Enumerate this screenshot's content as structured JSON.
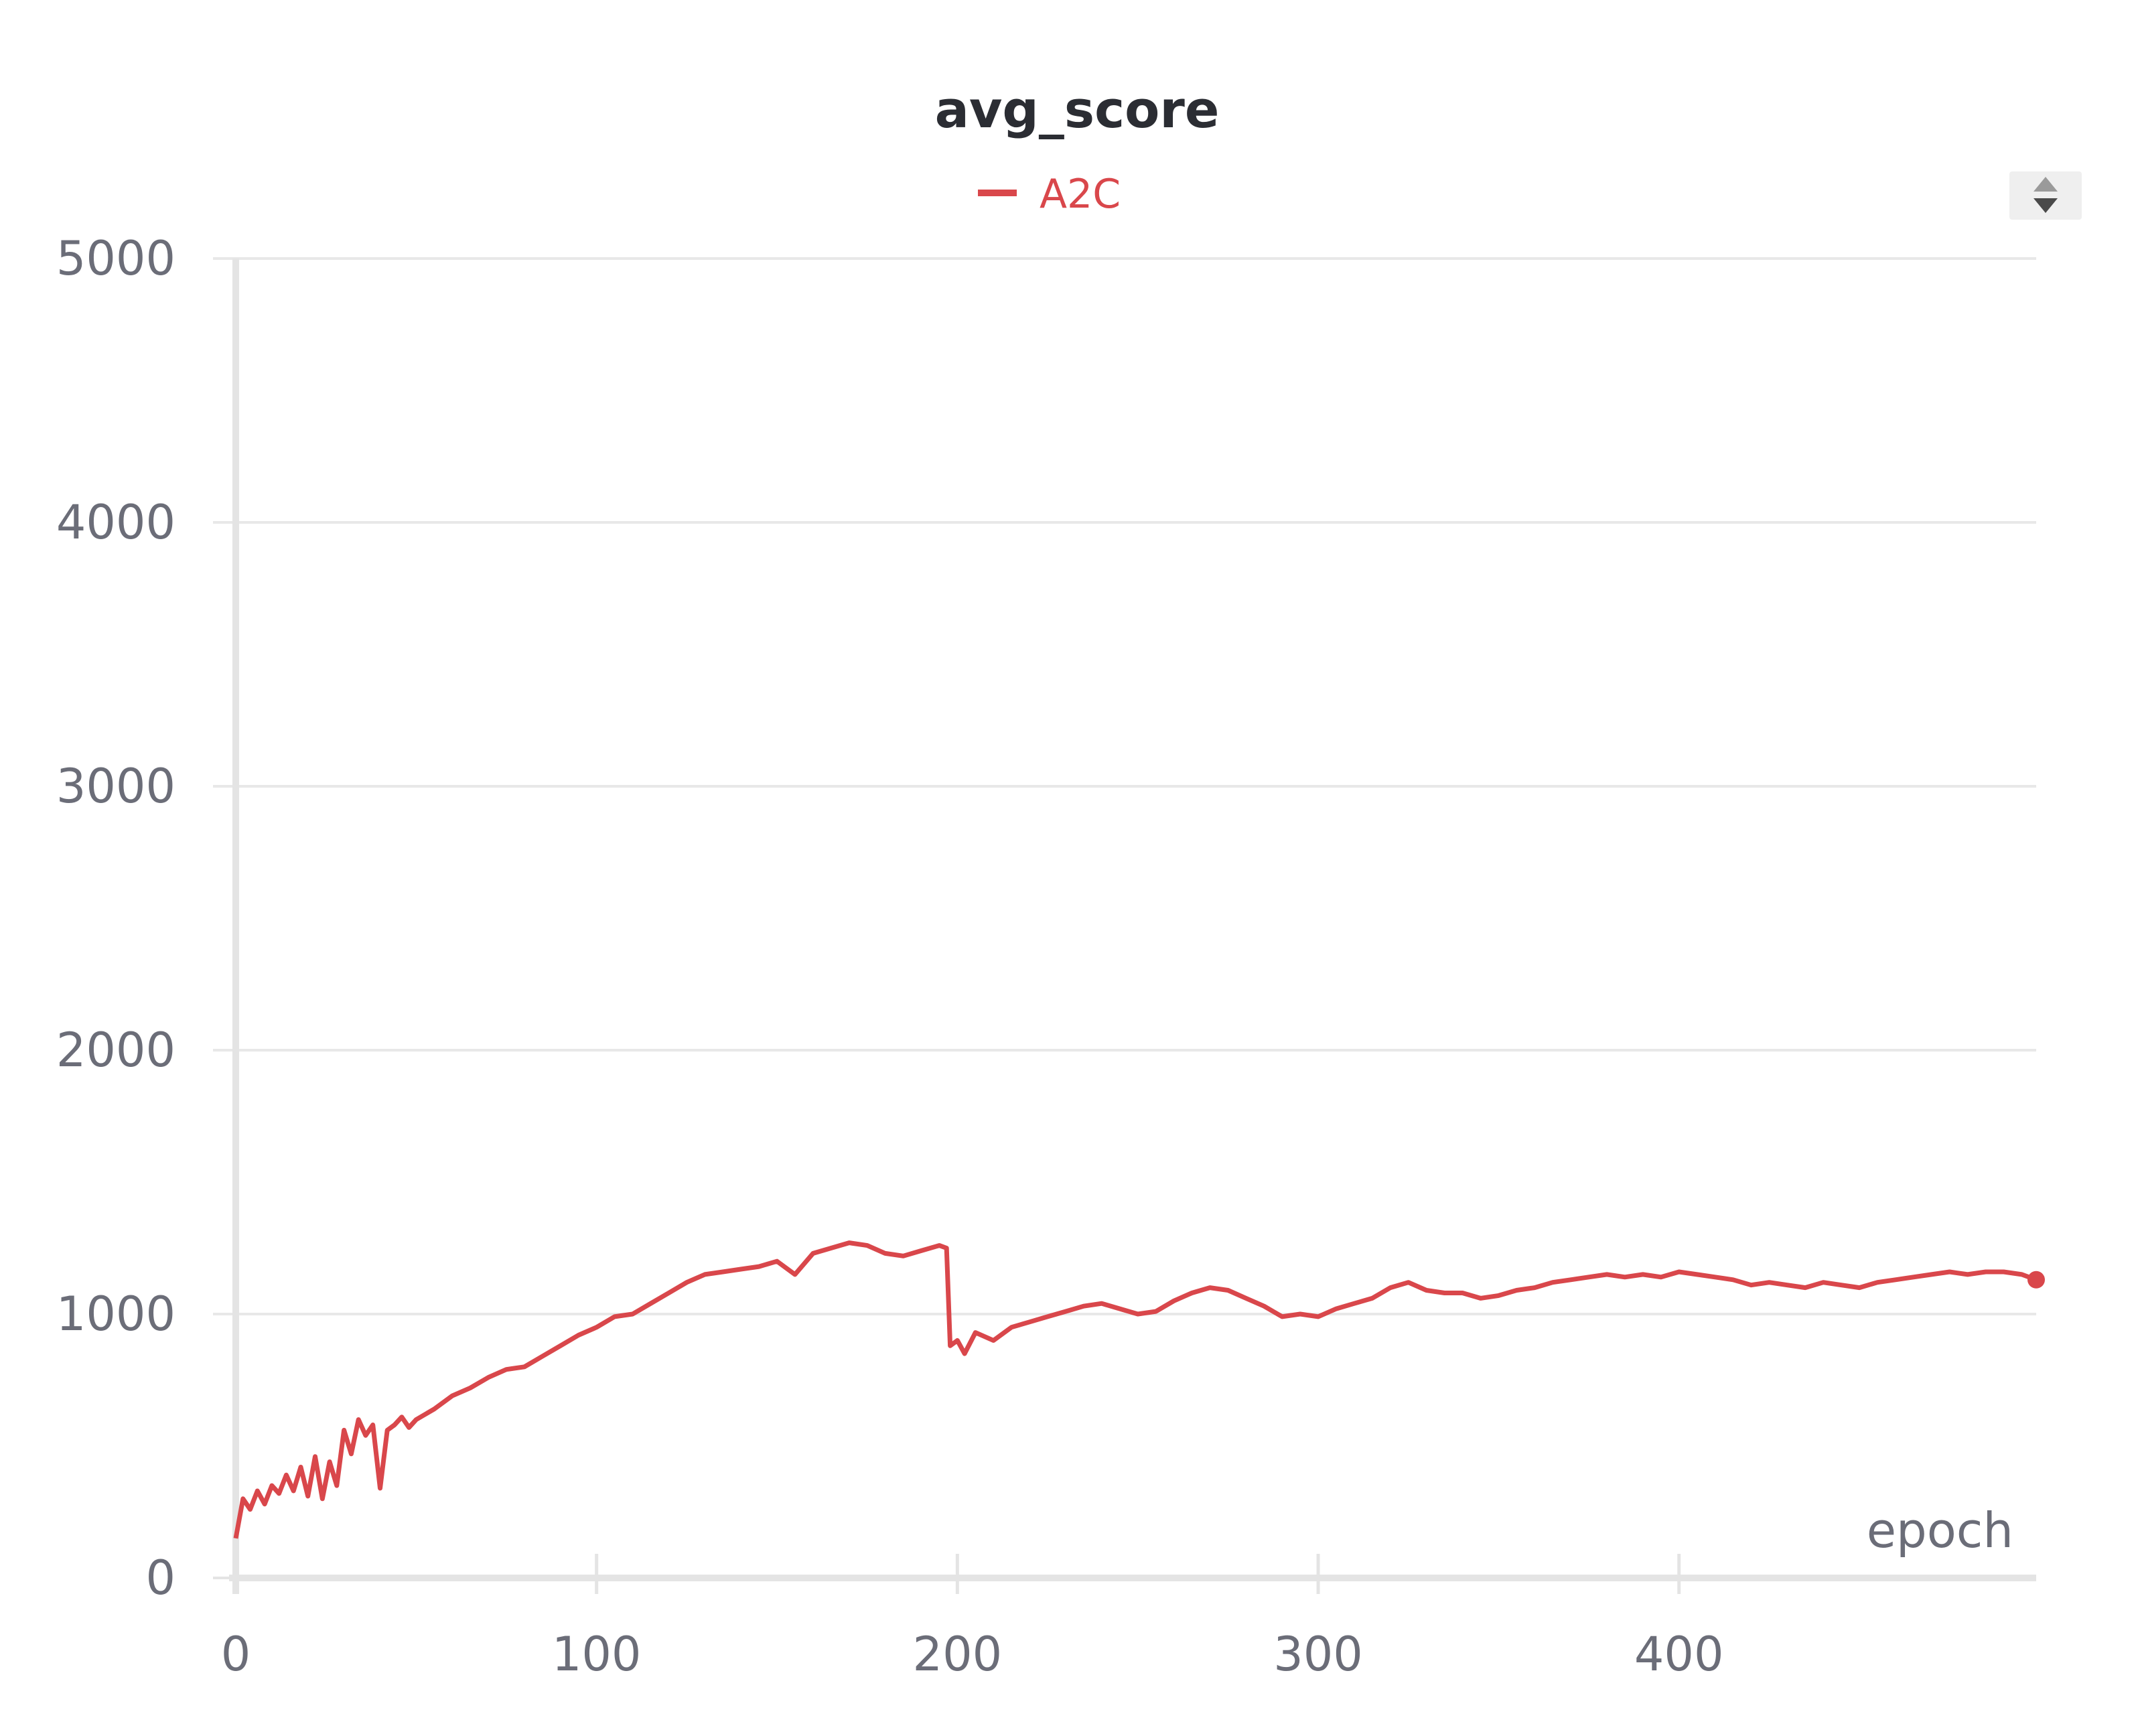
{
  "chart_data": {
    "type": "line",
    "title": "avg_score",
    "xlabel": "epoch",
    "ylabel": "",
    "xlim": [
      0,
      499
    ],
    "ylim": [
      0,
      5000
    ],
    "xticks": [
      0,
      100,
      200,
      300,
      400
    ],
    "yticks": [
      0,
      1000,
      2000,
      3000,
      4000,
      5000
    ],
    "grid": "horizontal",
    "legend_position": "top",
    "series": [
      {
        "name": "A2C",
        "color": "#d9474b",
        "x": [
          0,
          2,
          4,
          6,
          8,
          10,
          12,
          14,
          16,
          18,
          20,
          22,
          24,
          26,
          28,
          30,
          32,
          34,
          36,
          38,
          40,
          42,
          44,
          46,
          48,
          50,
          55,
          60,
          65,
          70,
          75,
          80,
          85,
          90,
          95,
          100,
          105,
          110,
          115,
          120,
          125,
          130,
          135,
          140,
          145,
          150,
          155,
          160,
          165,
          170,
          175,
          180,
          185,
          190,
          195,
          197,
          198,
          200,
          202,
          205,
          210,
          215,
          220,
          225,
          230,
          235,
          240,
          245,
          250,
          255,
          260,
          265,
          270,
          275,
          280,
          285,
          290,
          295,
          300,
          305,
          310,
          315,
          320,
          325,
          330,
          335,
          340,
          345,
          350,
          355,
          360,
          365,
          370,
          375,
          380,
          385,
          390,
          395,
          400,
          405,
          410,
          415,
          420,
          425,
          430,
          435,
          440,
          445,
          450,
          455,
          460,
          465,
          470,
          475,
          480,
          485,
          490,
          495,
          499
        ],
        "y": [
          150,
          300,
          260,
          330,
          280,
          350,
          320,
          390,
          330,
          420,
          310,
          460,
          300,
          440,
          350,
          560,
          470,
          600,
          540,
          580,
          340,
          560,
          580,
          610,
          570,
          600,
          640,
          690,
          720,
          760,
          790,
          800,
          840,
          880,
          920,
          950,
          990,
          1000,
          1040,
          1080,
          1120,
          1150,
          1160,
          1170,
          1180,
          1200,
          1150,
          1230,
          1250,
          1270,
          1260,
          1230,
          1220,
          1240,
          1260,
          1250,
          880,
          900,
          850,
          930,
          900,
          950,
          970,
          990,
          1010,
          1030,
          1040,
          1020,
          1000,
          1010,
          1050,
          1080,
          1100,
          1090,
          1060,
          1030,
          990,
          1000,
          990,
          1020,
          1040,
          1060,
          1100,
          1120,
          1090,
          1080,
          1080,
          1060,
          1070,
          1090,
          1100,
          1120,
          1130,
          1140,
          1150,
          1140,
          1150,
          1140,
          1160,
          1150,
          1140,
          1130,
          1110,
          1120,
          1110,
          1100,
          1120,
          1110,
          1100,
          1120,
          1130,
          1140,
          1150,
          1160,
          1150,
          1160,
          1160,
          1150,
          1130
        ]
      }
    ]
  },
  "controls": {
    "sort_icon": "sort-arrows-icon"
  }
}
